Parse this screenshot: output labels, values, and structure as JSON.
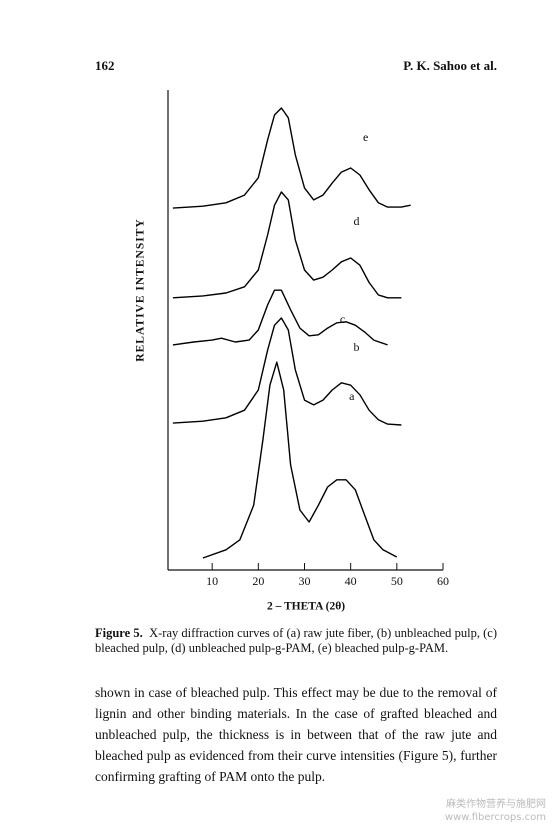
{
  "header": {
    "page_number": "162",
    "authors": "P. K. Sahoo et al."
  },
  "chart_data": {
    "type": "line",
    "xlabel": "2 – THETA (2θ)",
    "ylabel": "RELATIVE INTENSITY",
    "xlim": [
      0,
      60
    ],
    "xticks": [
      10,
      20,
      30,
      40,
      50,
      60
    ],
    "ylim": [
      0,
      100
    ],
    "series": [
      {
        "name": "a",
        "color": "#000000",
        "x": [
          8,
          13,
          16,
          19,
          21,
          22.5,
          24,
          25.5,
          27,
          29,
          31,
          33,
          35,
          37,
          39,
          41,
          43,
          45,
          47,
          50
        ],
        "values": [
          2.5,
          4.2,
          6.3,
          13.5,
          27.1,
          38.5,
          43.3,
          37.5,
          21.9,
          12.5,
          10,
          13.5,
          17.3,
          18.8,
          18.8,
          16.7,
          11.5,
          6.3,
          4.2,
          2.7
        ]
      },
      {
        "name": "b",
        "color": "#000000",
        "x": [
          1.5,
          8,
          13,
          17,
          20,
          22,
          23.5,
          25,
          26.5,
          28,
          30,
          32,
          34,
          36,
          38,
          40,
          42,
          44,
          46,
          48,
          51
        ],
        "values": [
          30.6,
          31.0,
          31.7,
          33.3,
          37.5,
          45.8,
          51.0,
          52.5,
          50.0,
          41.7,
          35.4,
          34.4,
          35.4,
          37.5,
          39.0,
          38.5,
          36.5,
          33.3,
          31.3,
          30.4,
          30.2
        ]
      },
      {
        "name": "c",
        "color": "#000000",
        "x": [
          1.5,
          6,
          10,
          12,
          15,
          18,
          20,
          22,
          23.5,
          25,
          27,
          29,
          31,
          33,
          35,
          37,
          39,
          41,
          43,
          45,
          48
        ],
        "values": [
          46.9,
          47.5,
          47.9,
          48.3,
          47.5,
          47.9,
          50,
          55.2,
          58.3,
          58.3,
          54.2,
          50.4,
          48.8,
          49.0,
          50.4,
          51.5,
          51.7,
          51.0,
          49.6,
          47.9,
          46.9
        ]
      },
      {
        "name": "d",
        "color": "#000000",
        "x": [
          1.5,
          8,
          13,
          17,
          20,
          22,
          23.5,
          25,
          26.5,
          28,
          30,
          32,
          34,
          36,
          38,
          40,
          42,
          44,
          46,
          48,
          51
        ],
        "values": [
          56.7,
          57.1,
          57.7,
          59.0,
          62.5,
          69.8,
          76.0,
          78.75,
          77.1,
          68.8,
          62.5,
          60.4,
          61.0,
          62.5,
          64.2,
          65.0,
          63.5,
          59.9,
          57.3,
          56.7,
          56.7
        ]
      },
      {
        "name": "e",
        "color": "#000000",
        "x": [
          1.5,
          8,
          13,
          17,
          20,
          22,
          23.5,
          25,
          26.5,
          28,
          30,
          32,
          34,
          36,
          38,
          40,
          42,
          44,
          46,
          48,
          51,
          53
        ],
        "values": [
          75.4,
          75.8,
          76.5,
          78.1,
          81.7,
          89.6,
          94.8,
          96.25,
          94.2,
          86.5,
          79.6,
          77.1,
          78.1,
          80.6,
          82.9,
          83.75,
          82.3,
          79.2,
          76.5,
          75.6,
          75.6,
          76.0
        ]
      }
    ]
  },
  "caption": {
    "label": "Figure 5.",
    "text": "X-ray diffraction curves of (a) raw jute fiber, (b) unbleached pulp, (c) bleached pulp, (d) unbleached pulp-g-PAM, (e) bleached pulp-g-PAM."
  },
  "body": "shown in case of bleached pulp. This effect may be due to the removal of lignin and other binding materials. In the case of grafted bleached and unbleached pulp, the thickness is in between that of the raw jute and bleached pulp as evidenced from their curve intensities (Figure 5), further confirming grafting of PAM onto the pulp.",
  "watermark": {
    "line1": "麻类作物营养与施肥网",
    "line2": "www.fibercrops.com"
  }
}
